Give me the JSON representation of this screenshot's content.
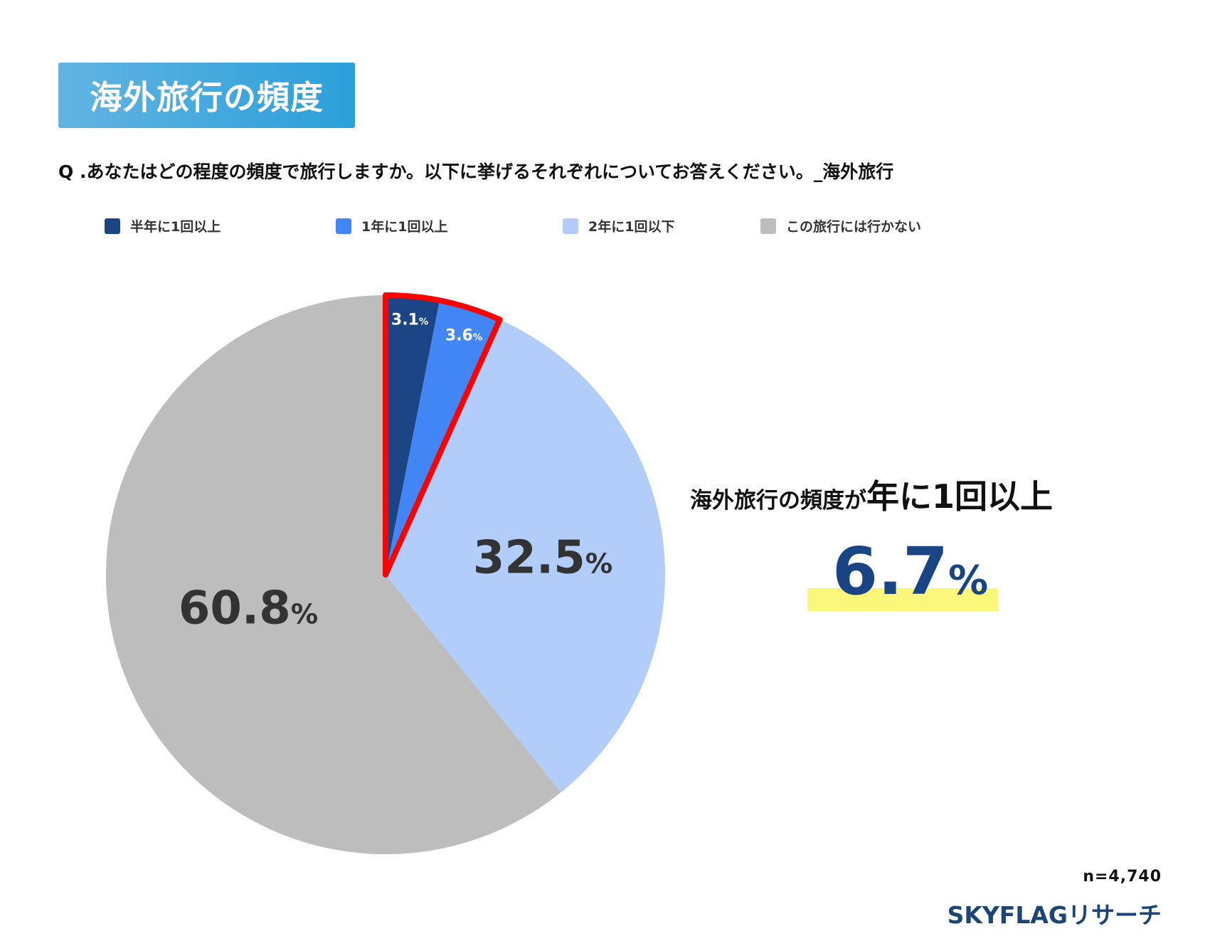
{
  "header": {
    "title": "海外旅行の頻度"
  },
  "question": "Q .あなたはどの程度の頻度で旅行しますか。以下に挙げるそれぞれについてお答えください。_海外旅行",
  "chart_data": {
    "type": "pie",
    "start": "top",
    "direction": "clockwise",
    "unit": "%",
    "legend_position": "top",
    "slices": [
      {
        "label": "半年に1回以上",
        "value": 3.1,
        "color": "#1b4585",
        "label_color": "#ffffff"
      },
      {
        "label": "1年に1回以上",
        "value": 3.6,
        "color": "#4285f4",
        "label_color": "#ffffff"
      },
      {
        "label": "2年に1回以下",
        "value": 32.5,
        "color": "#b2cdfa",
        "label_color": "#333333"
      },
      {
        "label": "この旅行には行かない",
        "value": 60.8,
        "color": "#bdbdbd",
        "label_color": "#333333"
      }
    ],
    "data_labels": [
      "3.1",
      "3.6",
      "32.5",
      "60.8"
    ],
    "highlight": {
      "slices": [
        0,
        1
      ],
      "color": "#ff0000"
    }
  },
  "callout": {
    "prefix": "海外旅行の頻度が",
    "emphasis": "年に1回以上",
    "value": "6.7",
    "unit": "%",
    "value_color": "#1a4585",
    "highlight_color": "#fbf77a"
  },
  "footer": {
    "sample": "n=4,740",
    "logo": "SKYFLAGリサーチ"
  }
}
